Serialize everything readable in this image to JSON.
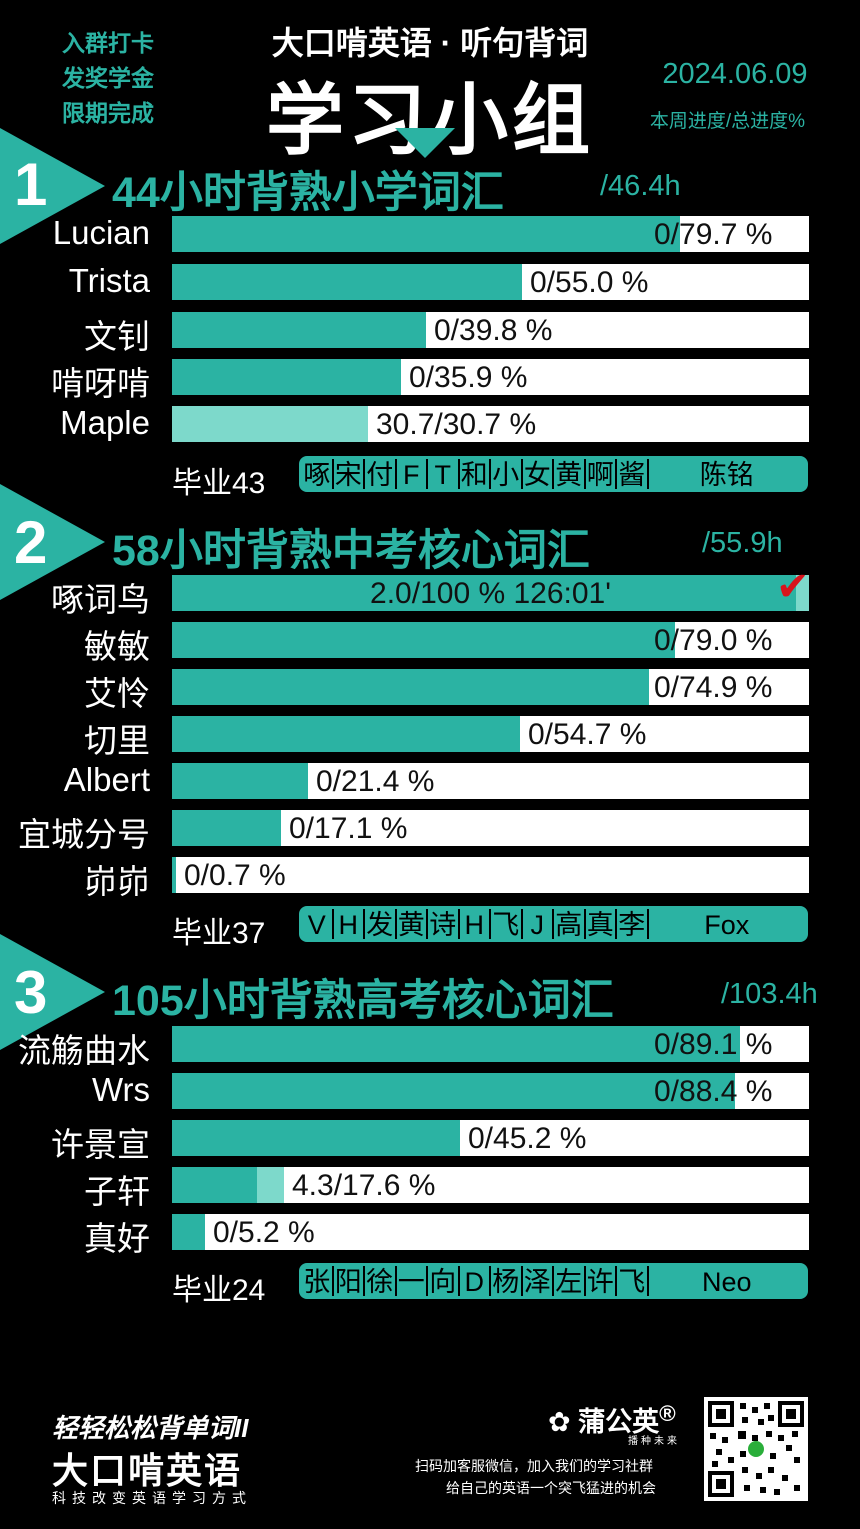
{
  "header": {
    "left_lines": [
      "入群打卡",
      "发奖学金",
      "限期完成"
    ],
    "brand_title": "大口啃英语 · 听句背词",
    "main_title": "学习小组",
    "date": "2024.06.09",
    "progress_label": "本周进度/总进度%"
  },
  "colors": {
    "accent": "#2bb3a3",
    "accent_light": "#7dd9cb",
    "check": "#d8141c"
  },
  "sections": [
    {
      "num": "1",
      "title": "44小时背熟小学词汇",
      "hours": "/46.4h",
      "rows": [
        {
          "name": "Lucian",
          "text": "0/79.7 %",
          "total": 79.7,
          "week": 0
        },
        {
          "name": "Trista",
          "text": "0/55.0 %",
          "total": 55.0,
          "week": 0
        },
        {
          "name": "文钊",
          "text": "0/39.8 %",
          "total": 39.8,
          "week": 0
        },
        {
          "name": "啃呀啃",
          "text": "0/35.9 %",
          "total": 35.9,
          "week": 0
        },
        {
          "name": "Maple",
          "text": "30.7/30.7 %",
          "total": 30.7,
          "week": 30.7
        }
      ],
      "graduates_label": "毕业43",
      "graduates": [
        "啄",
        "宋",
        "付",
        "F",
        "T",
        "和",
        "小",
        "女",
        "黄",
        "啊",
        "酱"
      ],
      "graduates_last": "陈铭"
    },
    {
      "num": "2",
      "title": "58小时背熟中考核心词汇",
      "hours": "/55.9h",
      "rows": [
        {
          "name": "啄词鸟",
          "text": "2.0/100 %  126:01'",
          "total": 100,
          "week": 2.0,
          "done": true
        },
        {
          "name": "敏敏",
          "text": "0/79.0 %",
          "total": 79.0,
          "week": 0
        },
        {
          "name": "艾怜",
          "text": "0/74.9 %",
          "total": 74.9,
          "week": 0
        },
        {
          "name": "切里",
          "text": "0/54.7 %",
          "total": 54.7,
          "week": 0
        },
        {
          "name": "Albert",
          "text": "0/21.4 %",
          "total": 21.4,
          "week": 0
        },
        {
          "name": "宜城分号",
          "text": "0/17.1 %",
          "total": 17.1,
          "week": 0
        },
        {
          "name": "峁峁",
          "text": "0/0.7 %",
          "total": 0.7,
          "week": 0
        }
      ],
      "graduates_label": "毕业37",
      "graduates": [
        "V",
        "H",
        "发",
        "黄",
        "诗",
        "H",
        "飞",
        "J",
        "高",
        "真",
        "李"
      ],
      "graduates_last": "Fox"
    },
    {
      "num": "3",
      "title": "105小时背熟高考核心词汇",
      "hours": "/103.4h",
      "rows": [
        {
          "name": "流觞曲水",
          "text": "0/89.1 %",
          "total": 89.1,
          "week": 0
        },
        {
          "name": "Wrs",
          "text": "0/88.4 %",
          "total": 88.4,
          "week": 0
        },
        {
          "name": "许景宣",
          "text": "0/45.2 %",
          "total": 45.2,
          "week": 0
        },
        {
          "name": "子轩",
          "text": "4.3/17.6 %",
          "total": 17.6,
          "week": 4.3
        },
        {
          "name": "真好",
          "text": "0/5.2 %",
          "total": 5.2,
          "week": 0
        }
      ],
      "graduates_label": "毕业24",
      "graduates": [
        "张",
        "阳",
        "徐",
        "一",
        "向",
        "D",
        "杨",
        "泽",
        "左",
        "许",
        "飞"
      ],
      "graduates_last": "Neo"
    }
  ],
  "footer": {
    "slogan": "轻轻松松背单词II",
    "brand": "大口啃英语",
    "tagline": "科技改变英语学习方式",
    "partner_logo": "蒲公英",
    "partner_sub": "播种未来",
    "line1": "扫码加客服微信，加入我们的学习社群",
    "line2": "给自己的英语一个突飞猛进的机会"
  }
}
